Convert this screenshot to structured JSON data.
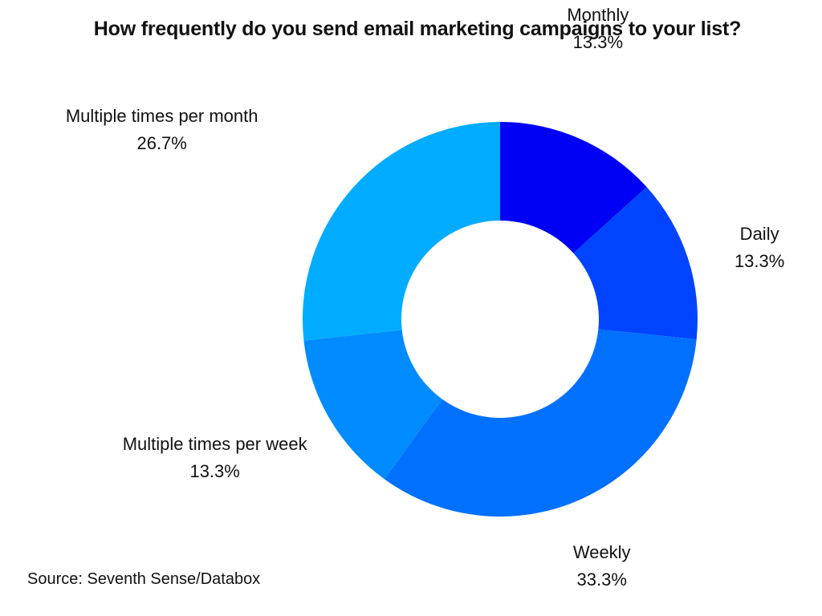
{
  "chart_data": {
    "type": "pie",
    "variant": "donut",
    "title": "How frequently do you send email marketing campaigns to your list?",
    "slices": [
      {
        "label": "Monthly",
        "value": 13.3,
        "value_label": "13.3%",
        "color": "#0000f5"
      },
      {
        "label": "Daily",
        "value": 13.3,
        "value_label": "13.3%",
        "color": "#0044ff"
      },
      {
        "label": "Weekly",
        "value": 33.3,
        "value_label": "33.3%",
        "color": "#0070ff"
      },
      {
        "label": "Multiple times per week",
        "value": 13.3,
        "value_label": "13.3%",
        "color": "#008bff"
      },
      {
        "label": "Multiple times per month",
        "value": 26.7,
        "value_label": "26.7%",
        "color": "#00acff"
      }
    ],
    "legend": "none",
    "source": "Source: Seventh Sense/Databox"
  }
}
